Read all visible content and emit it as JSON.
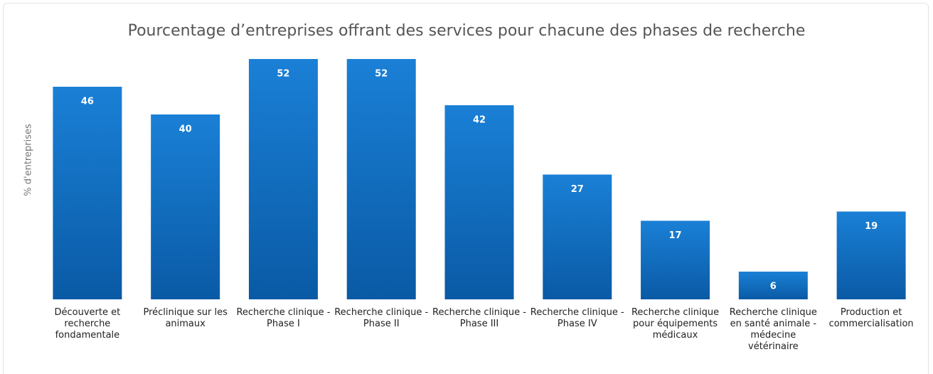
{
  "chart_data": {
    "type": "bar",
    "title": "Pourcentage d’entreprises offrant des services pour chacune des phases de recherche",
    "y_label": "% d'entreprises",
    "categories": [
      "Découverte et recherche fondamentale",
      "Préclinique sur les animaux",
      "Recherche clinique - Phase I",
      "Recherche clinique - Phase II",
      "Recherche clinique - Phase III",
      "Recherche clinique - Phase IV",
      "Recherche clinique pour équipements médicaux",
      "Recherche clinique en santé animale - médecine vétérinaire",
      "Production et commercialisation"
    ],
    "values": [
      46,
      40,
      52,
      52,
      42,
      27,
      17,
      6,
      19
    ],
    "color": "#0f6cc0",
    "ylim": [
      0,
      52
    ]
  }
}
